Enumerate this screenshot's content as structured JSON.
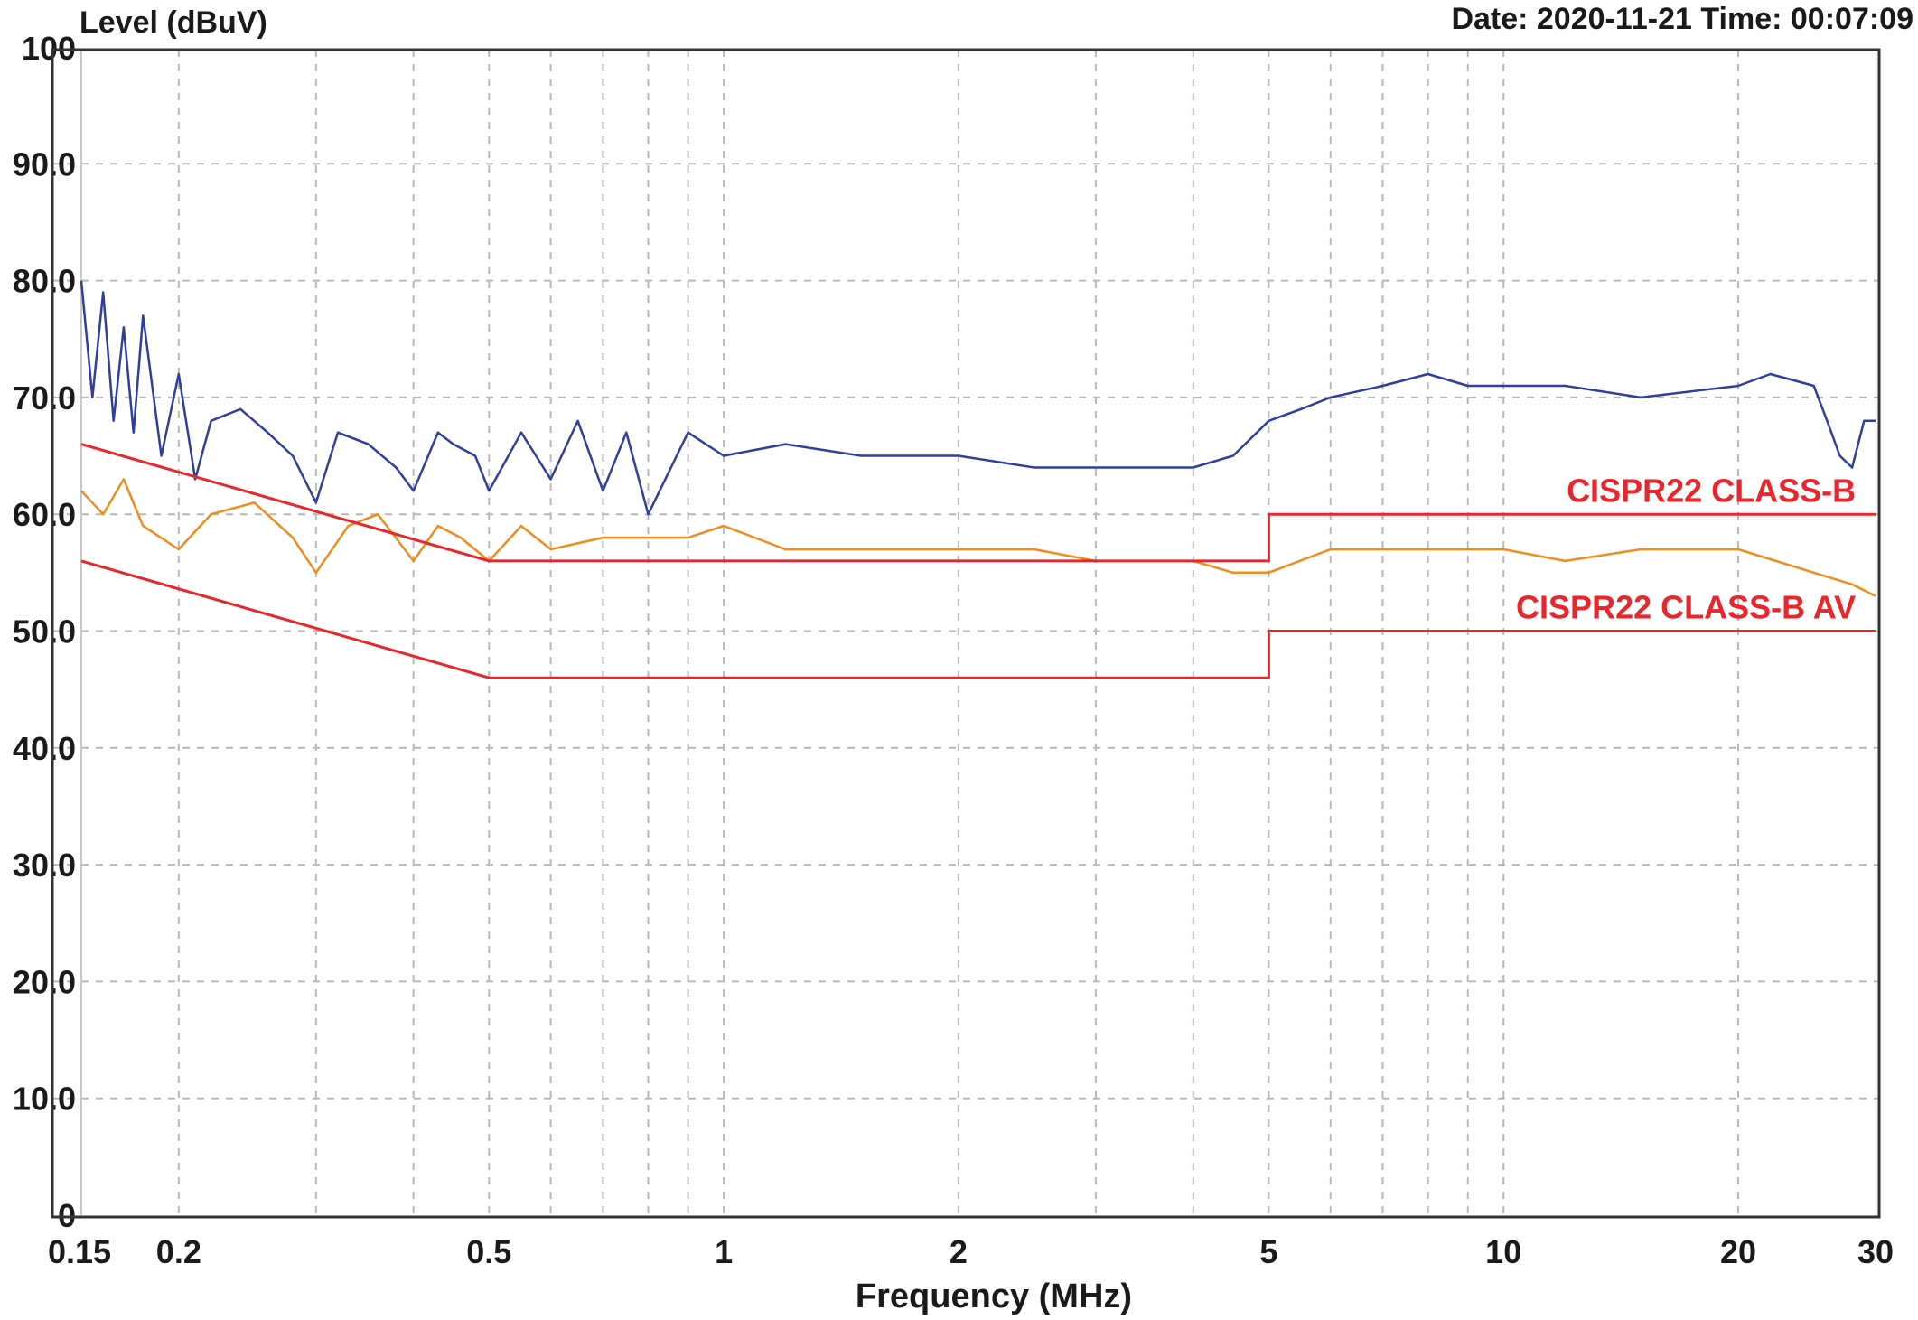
{
  "header": {
    "ylabel": "Level (dBuV)",
    "timestamp": "Date: 2020-11-21  Time: 00:07:09"
  },
  "chart_data": {
    "type": "line",
    "xlabel": "Frequency (MHz)",
    "ylabel": "Level (dBuV)",
    "x_scale": "log",
    "xlim": [
      0.15,
      30
    ],
    "ylim": [
      0,
      100
    ],
    "grid": true,
    "y_ticks": [
      {
        "value": 0,
        "label": "0"
      },
      {
        "value": 10,
        "label": "10.0"
      },
      {
        "value": 20,
        "label": "20.0"
      },
      {
        "value": 30,
        "label": "30.0"
      },
      {
        "value": 40,
        "label": "40.0"
      },
      {
        "value": 50,
        "label": "50.0"
      },
      {
        "value": 60,
        "label": "60.0"
      },
      {
        "value": 70,
        "label": "70.0"
      },
      {
        "value": 80,
        "label": "80.0"
      },
      {
        "value": 90,
        "label": "90.0"
      },
      {
        "value": 100,
        "label": "100"
      }
    ],
    "x_ticks": [
      {
        "value": 0.15,
        "label": "0.15"
      },
      {
        "value": 0.2,
        "label": "0.2"
      },
      {
        "value": 0.5,
        "label": "0.5"
      },
      {
        "value": 1,
        "label": "1"
      },
      {
        "value": 2,
        "label": "2"
      },
      {
        "value": 5,
        "label": "5"
      },
      {
        "value": 10,
        "label": "10"
      },
      {
        "value": 20,
        "label": "20"
      },
      {
        "value": 30,
        "label": "30"
      }
    ],
    "x_minor_gridlines": [
      0.3,
      0.4,
      0.6,
      0.7,
      0.8,
      0.9,
      3,
      4,
      6,
      7,
      8,
      9
    ],
    "series": [
      {
        "name": "CISPR22 CLASS-B",
        "color": "#e8262b",
        "kind": "limit",
        "x": [
          0.15,
          0.5,
          5,
          5,
          30
        ],
        "y": [
          66,
          56,
          56,
          60,
          60
        ]
      },
      {
        "name": "CISPR22 CLASS-B AV",
        "color": "#e8262b",
        "kind": "limit",
        "x": [
          0.15,
          0.5,
          5,
          5,
          30
        ],
        "y": [
          56,
          46,
          46,
          50,
          50
        ]
      },
      {
        "color": "#2e3f9e",
        "kind": "trace",
        "x": [
          0.15,
          0.155,
          0.16,
          0.165,
          0.17,
          0.175,
          0.18,
          0.19,
          0.2,
          0.21,
          0.22,
          0.24,
          0.26,
          0.28,
          0.3,
          0.32,
          0.35,
          0.38,
          0.4,
          0.43,
          0.45,
          0.48,
          0.5,
          0.55,
          0.6,
          0.65,
          0.7,
          0.75,
          0.8,
          0.9,
          1,
          1.2,
          1.5,
          2,
          2.5,
          3,
          3.5,
          4,
          4.5,
          5,
          5.5,
          6,
          7,
          8,
          9,
          10,
          12,
          15,
          20,
          22,
          25,
          26,
          27,
          28,
          29,
          30
        ],
        "y": [
          80,
          70,
          79,
          68,
          76,
          67,
          77,
          65,
          72,
          63,
          68,
          69,
          67,
          65,
          61,
          67,
          66,
          64,
          62,
          67,
          66,
          65,
          62,
          67,
          63,
          68,
          62,
          67,
          60,
          67,
          65,
          66,
          65,
          65,
          64,
          64,
          64,
          64,
          65,
          68,
          69,
          70,
          71,
          72,
          71,
          71,
          71,
          70,
          71,
          72,
          71,
          68,
          65,
          64,
          68,
          68
        ]
      },
      {
        "color": "#f08c1e",
        "kind": "trace",
        "x": [
          0.15,
          0.16,
          0.17,
          0.18,
          0.2,
          0.22,
          0.25,
          0.28,
          0.3,
          0.33,
          0.36,
          0.4,
          0.43,
          0.46,
          0.5,
          0.55,
          0.6,
          0.7,
          0.8,
          0.9,
          1,
          1.2,
          1.5,
          2,
          2.5,
          3,
          3.5,
          4,
          4.5,
          5,
          6,
          7,
          8,
          10,
          12,
          15,
          20,
          25,
          28,
          30
        ],
        "y": [
          62,
          60,
          63,
          59,
          57,
          60,
          61,
          58,
          55,
          59,
          60,
          56,
          59,
          58,
          56,
          59,
          57,
          58,
          58,
          58,
          59,
          57,
          57,
          57,
          57,
          56,
          56,
          56,
          55,
          55,
          57,
          57,
          57,
          57,
          56,
          57,
          57,
          55,
          54,
          53
        ]
      }
    ],
    "annotations": [
      {
        "text": "CISPR22 CLASS-B",
        "x": 28,
        "y": 62,
        "color": "#e8262b"
      },
      {
        "text": "CISPR22 CLASS-B AV",
        "x": 28,
        "y": 52,
        "color": "#e8262b"
      }
    ]
  }
}
